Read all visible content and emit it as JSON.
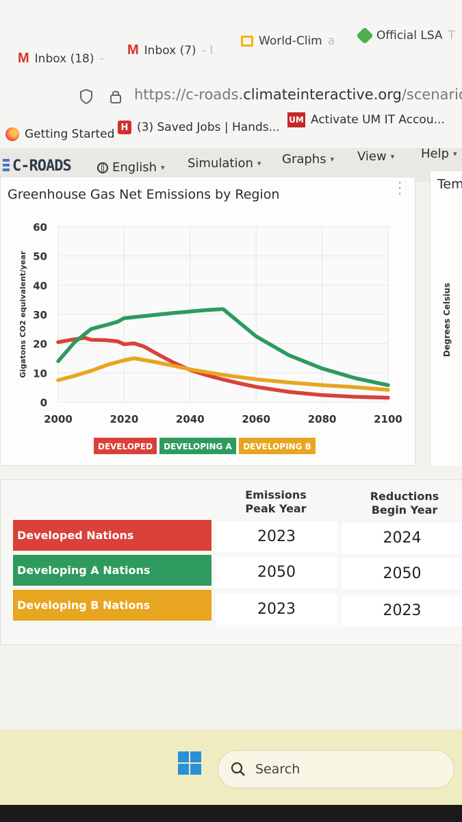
{
  "browser": {
    "tabs": [
      {
        "icon": "gmail-icon",
        "label": "Inbox (18)",
        "fade": "-"
      },
      {
        "icon": "gmail-icon",
        "label": "Inbox (7)",
        "fade": "- I"
      },
      {
        "icon": "slides-icon",
        "label": "World-Clim",
        "fade": "a"
      },
      {
        "icon": "lsa-icon",
        "label": "Official LSA",
        "fade": "T"
      }
    ],
    "url_prefix": "https://c-roads.",
    "url_domain": "climateinteractive.org",
    "url_path": "/scenario.htm",
    "bookmarks": [
      {
        "icon": "firefox-icon",
        "label": "Getting Started"
      },
      {
        "icon": "handshake-icon",
        "icon_text": "H",
        "label": "(3) Saved Jobs | Hands..."
      },
      {
        "icon": "um-icon",
        "icon_text": "UM",
        "label": "Activate UM IT Accou..."
      }
    ]
  },
  "app": {
    "logo": "C-ROADS",
    "nav": [
      {
        "label": "English"
      },
      {
        "label": "Simulation"
      },
      {
        "label": "Graphs"
      },
      {
        "label": "View"
      },
      {
        "label": "Help"
      }
    ],
    "side_panel_title": "Tem",
    "side_panel_ylabel": "Degrees Celsius"
  },
  "graph": {
    "title": "Greenhouse Gas Net Emissions by Region"
  },
  "chart_data": {
    "type": "line",
    "title": "Greenhouse Gas Net Emissions by Region",
    "xlabel": "",
    "ylabel": "Gigatons CO2 equivalent/year",
    "xlim": [
      2000,
      2100
    ],
    "ylim": [
      0,
      60
    ],
    "x_ticks": [
      2000,
      2020,
      2040,
      2060,
      2080,
      2100
    ],
    "y_ticks": [
      0,
      10,
      20,
      30,
      40,
      50,
      60
    ],
    "grid": true,
    "legend_position": "bottom",
    "series": [
      {
        "name": "DEVELOPED",
        "color": "#d9413a",
        "x": [
          2000,
          2004,
          2008,
          2010,
          2014,
          2018,
          2020,
          2023,
          2026,
          2030,
          2035,
          2040,
          2045,
          2050,
          2055,
          2060,
          2070,
          2080,
          2090,
          2100
        ],
        "y": [
          20.5,
          21.3,
          22,
          21.3,
          21.2,
          20.8,
          19.8,
          20.1,
          19.0,
          16.5,
          13.5,
          11.0,
          9.2,
          7.7,
          6.4,
          5.2,
          3.5,
          2.4,
          1.8,
          1.5
        ]
      },
      {
        "name": "DEVELOPING A",
        "color": "#2e9a5e",
        "x": [
          2000,
          2005,
          2010,
          2015,
          2018,
          2020,
          2025,
          2030,
          2035,
          2040,
          2045,
          2050,
          2060,
          2070,
          2080,
          2090,
          2100
        ],
        "y": [
          14,
          20.5,
          25,
          26.5,
          27.5,
          28.7,
          29.3,
          29.9,
          30.5,
          31.0,
          31.5,
          31.8,
          22.5,
          16.0,
          11.5,
          8.2,
          5.8
        ]
      },
      {
        "name": "DEVELOPING B",
        "color": "#e8a520",
        "x": [
          2000,
          2005,
          2010,
          2015,
          2020,
          2023,
          2030,
          2040,
          2050,
          2060,
          2070,
          2080,
          2090,
          2100
        ],
        "y": [
          7.5,
          9.0,
          10.7,
          12.8,
          14.3,
          15.0,
          13.6,
          11.2,
          9.3,
          7.8,
          6.7,
          5.8,
          5.1,
          4.2
        ]
      }
    ]
  },
  "summary_table": {
    "headers": {
      "peak_line1": "Emissions",
      "peak_line2": "Peak Year",
      "reduce_line1": "Reductions",
      "reduce_line2": "Begin Year"
    },
    "rows": [
      {
        "label": "Developed Nations",
        "color": "#d9413a",
        "peak": "2023",
        "reduce": "2024"
      },
      {
        "label": "Developing A Nations",
        "color": "#2e9a5e",
        "peak": "2050",
        "reduce": "2050"
      },
      {
        "label": "Developing B Nations",
        "color": "#e8a520",
        "peak": "2023",
        "reduce": "2023"
      }
    ]
  },
  "taskbar": {
    "search_label": "Search"
  }
}
